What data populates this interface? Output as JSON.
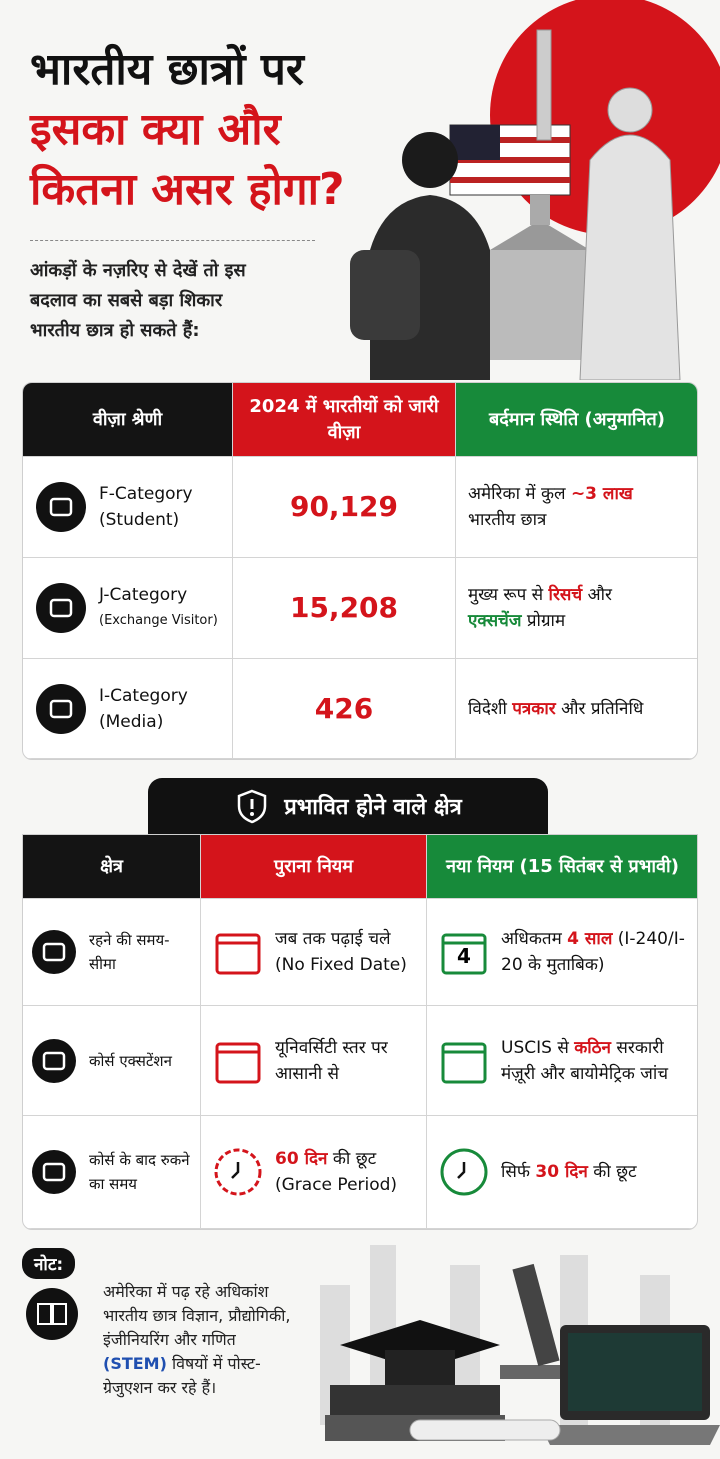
{
  "header": {
    "title_lines": [
      {
        "text": "भारतीय छात्रों पर",
        "style": "dark"
      },
      {
        "text": "इसका क्या और",
        "style": "red"
      },
      {
        "text": "कितना असर होगा?",
        "style": "red"
      }
    ],
    "intro_lines": [
      "आंकड़ों के नज़रिए से देखें तो इस",
      "बदलाव का सबसे बड़ा शिकार",
      "भारतीय छात्र हो सकते हैं:"
    ]
  },
  "visa_table": {
    "headers": [
      "वीज़ा श्रेणी",
      "2024 में भारतीयों को जारी वीज़ा",
      "बर्दमान स्थिति (अनुमानित)"
    ],
    "rows": [
      {
        "category": "F-Category",
        "subtitle": "(Student)",
        "visas": "90,129",
        "status": [
          {
            "text": "अमेरिका में कुल"
          },
          {
            "text": "~3 लाख",
            "style": "red"
          },
          {
            "text": "भारतीय छात्र"
          }
        ]
      },
      {
        "category": "J-Category",
        "subtitle": "(Exchange Visitor)",
        "visas": "15,208",
        "status": [
          {
            "text": "मुख्य रूप से"
          },
          {
            "text": "रिसर्च",
            "style": "red"
          },
          {
            "text": "और"
          },
          {
            "text": "एक्सचेंज",
            "style": "green"
          },
          {
            "text": "प्रोग्राम"
          }
        ]
      },
      {
        "category": "I-Category",
        "subtitle": "(Media)",
        "visas": "426",
        "status": [
          {
            "text": "विदेशी"
          },
          {
            "text": "पत्रकार",
            "style": "red"
          },
          {
            "text": "और प्रतिनिधि"
          }
        ]
      }
    ]
  },
  "impact_section": {
    "title": "प्रभावित होने वाले क्षेत्र",
    "headers": [
      "क्षेत्र",
      "पुराना नियम",
      "नया नियम (15 सितंबर से प्रभावी)"
    ],
    "rows": [
      {
        "area": "रहने की समय-सीमा",
        "old": [
          {
            "text": "जब तक पढ़ाई चले (No Fixed Date)"
          }
        ],
        "icon_text": "4",
        "new": [
          {
            "text": "अधिकतम"
          },
          {
            "text": "4 साल",
            "style": "red"
          },
          {
            "text": "(I-240/I-20 के मुताबिक)"
          }
        ]
      },
      {
        "area": "कोर्स एक्सटेंशन",
        "old": [
          {
            "text": "यूनिवर्सिटी स्तर पर आसानी से"
          }
        ],
        "new": [
          {
            "text": "USCIS से"
          },
          {
            "text": "कठिन",
            "style": "red"
          },
          {
            "text": "सरकारी मंज़ूरी और बायोमेट्रिक जांच"
          }
        ]
      },
      {
        "area": "कोर्स के बाद रुकने का समय",
        "old": [
          {
            "text": "60 दिन",
            "style": "red"
          },
          {
            "text": "की छूट (Grace Period)"
          }
        ],
        "new": [
          {
            "text": "सिर्फ"
          },
          {
            "text": "30 दिन",
            "style": "red"
          },
          {
            "text": "की छूट"
          }
        ]
      }
    ]
  },
  "note": {
    "label": "नोट:",
    "text": [
      {
        "text": "अमेरिका में पढ़ रहे अधिकांश भारतीय छात्र विज्ञान, प्रौद्योगिकी, इंजीनियरिंग और गणित"
      },
      {
        "text": "(STEM)",
        "style": "blue"
      },
      {
        "text": "विषयों में पोस्ट-ग्रेजुएशन कर रहे हैं।"
      }
    ]
  }
}
